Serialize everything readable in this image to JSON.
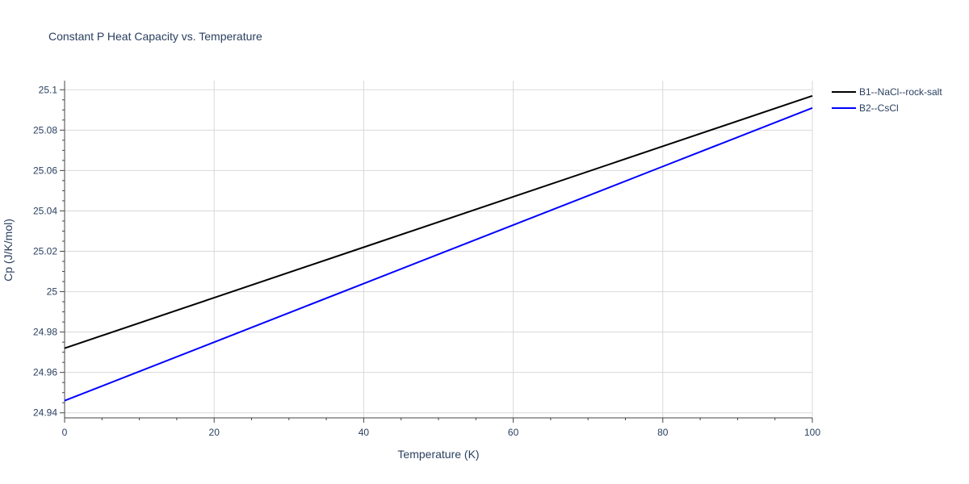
{
  "chart_data": {
    "type": "line",
    "title": "Constant P Heat Capacity vs. Temperature",
    "xlabel": "Temperature (K)",
    "ylabel": "Cp (J/K/mol)",
    "xlim": [
      0,
      100
    ],
    "ylim": [
      24.9375,
      25.1045
    ],
    "x_ticks": [
      0,
      20,
      40,
      60,
      80,
      100
    ],
    "x_tick_labels": [
      "0",
      "20",
      "40",
      "60",
      "80",
      "100"
    ],
    "y_ticks": [
      24.94,
      24.96,
      24.98,
      25.0,
      25.02,
      25.04,
      25.06,
      25.08,
      25.1
    ],
    "y_tick_labels": [
      "24.94",
      "24.96",
      "24.98",
      "25",
      "25.02",
      "25.04",
      "25.06",
      "25.08",
      "25.1"
    ],
    "grid": true,
    "legend_position": "right",
    "series": [
      {
        "name": "B1--NaCl--rock-salt",
        "color": "#000000",
        "x": [
          0,
          20,
          40,
          60,
          80,
          100
        ],
        "values": [
          24.972,
          24.997,
          25.022,
          25.047,
          25.072,
          25.097
        ]
      },
      {
        "name": "B2--CsCl",
        "color": "#0000ff",
        "x": [
          0,
          20,
          40,
          60,
          80,
          100
        ],
        "values": [
          24.946,
          24.975,
          25.004,
          25.033,
          25.062,
          25.091
        ]
      }
    ]
  }
}
